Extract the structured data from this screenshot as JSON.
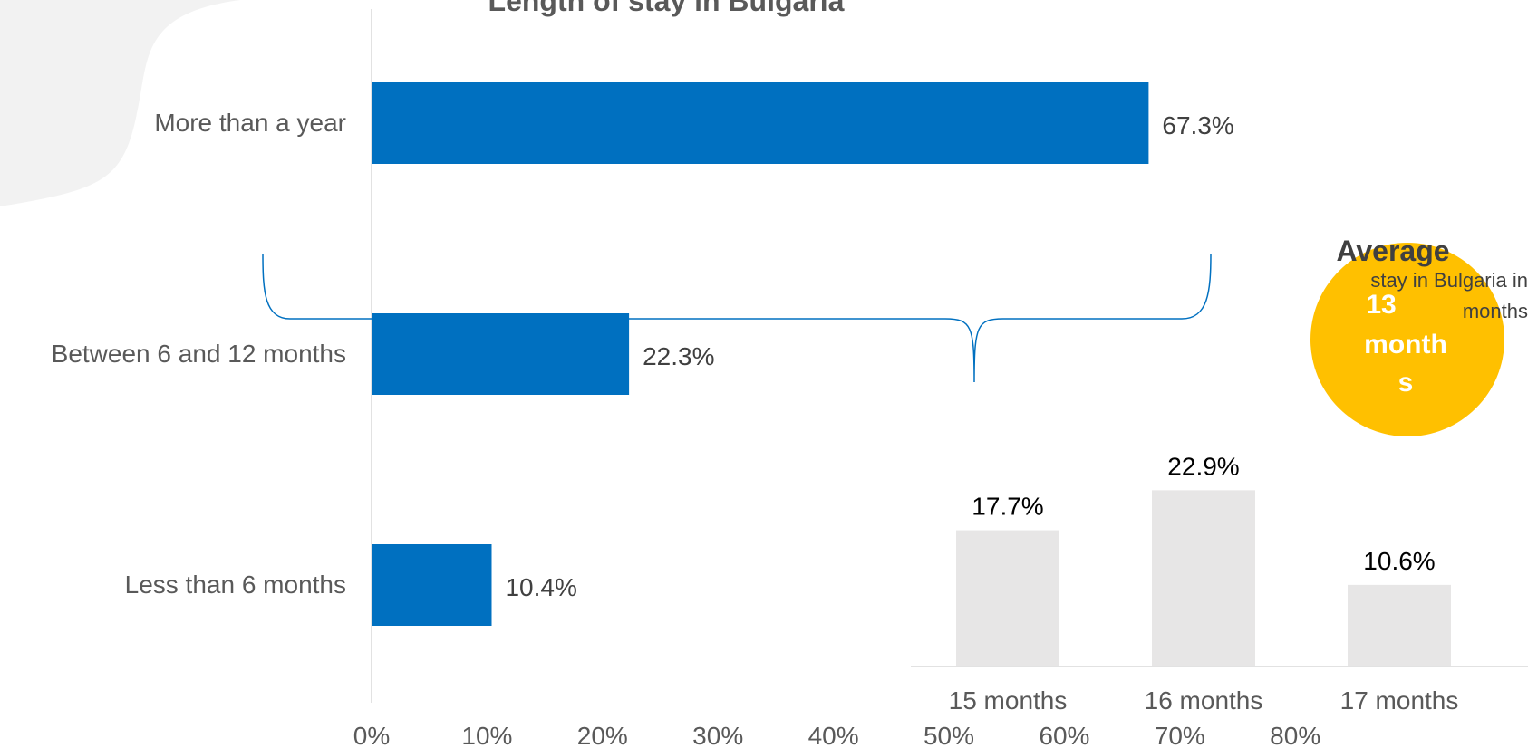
{
  "colors": {
    "background_blob": "#f2f2f2",
    "main_bar": "#0070c0",
    "axis_line": "#d9d9d9",
    "category_text": "#595959",
    "value_text": "#404040",
    "brace": "#0070c0",
    "inset_bar": "#e7e6e6",
    "average_circle": "#ffc000",
    "average_value_text": "#ffffff",
    "inset_value_text": "#000000"
  },
  "chart_data": [
    {
      "type": "bar",
      "orientation": "horizontal",
      "title": "Length of stay in Bulgaria",
      "categories": [
        "More than a year",
        "Between 6 and 12 months",
        "Less than 6 months"
      ],
      "values": [
        67.3,
        22.3,
        10.4
      ],
      "value_labels": [
        "67.3%",
        "22.3%",
        "10.4%"
      ],
      "xlim": [
        0,
        80
      ],
      "xticks": [
        0,
        10,
        20,
        30,
        40,
        50,
        60,
        70,
        80
      ],
      "xtick_labels": [
        "0%",
        "10%",
        "20%",
        "30%",
        "40%",
        "50%",
        "60%",
        "70%",
        "80%"
      ],
      "grid": false,
      "legend": "none"
    },
    {
      "type": "bar",
      "orientation": "vertical",
      "categories": [
        "15 months",
        "16 months",
        "17 months"
      ],
      "values": [
        17.7,
        22.9,
        10.6
      ],
      "value_labels": [
        "17.7%",
        "22.9%",
        "10.6%"
      ],
      "ylim": [
        0,
        25
      ],
      "legend": "none"
    }
  ],
  "average": {
    "heading": "Average",
    "subtitle_line1": "stay in Bulgaria in",
    "subtitle_line2": "months",
    "value_lines": [
      "13",
      "month",
      "s"
    ]
  }
}
